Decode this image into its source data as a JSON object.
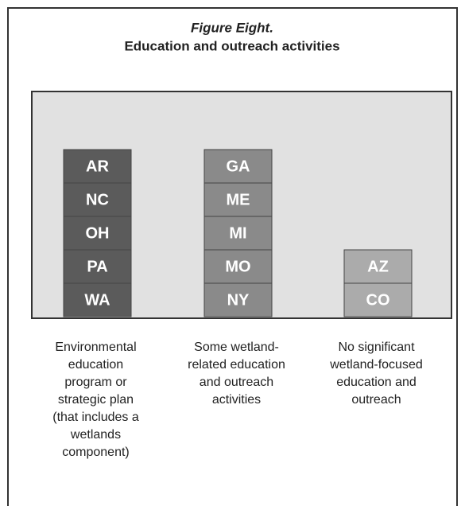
{
  "header": {
    "title": "Figure Eight.",
    "subtitle": "Education and outreach activities"
  },
  "columns": [
    {
      "items": [
        "AR",
        "NC",
        "OH",
        "PA",
        "WA"
      ],
      "caption_lines": [
        "Environmental",
        "education",
        "program or",
        "strategic plan",
        "(that includes a",
        "wetlands",
        "component)"
      ]
    },
    {
      "items": [
        "GA",
        "ME",
        "MI",
        "MO",
        "NY"
      ],
      "caption_lines": [
        "Some wetland-",
        "related education",
        "and outreach",
        "activities"
      ]
    },
    {
      "items": [
        "AZ",
        "CO"
      ],
      "caption_lines": [
        "No significant",
        "wetland-focused",
        "education and",
        "outreach"
      ]
    }
  ]
}
